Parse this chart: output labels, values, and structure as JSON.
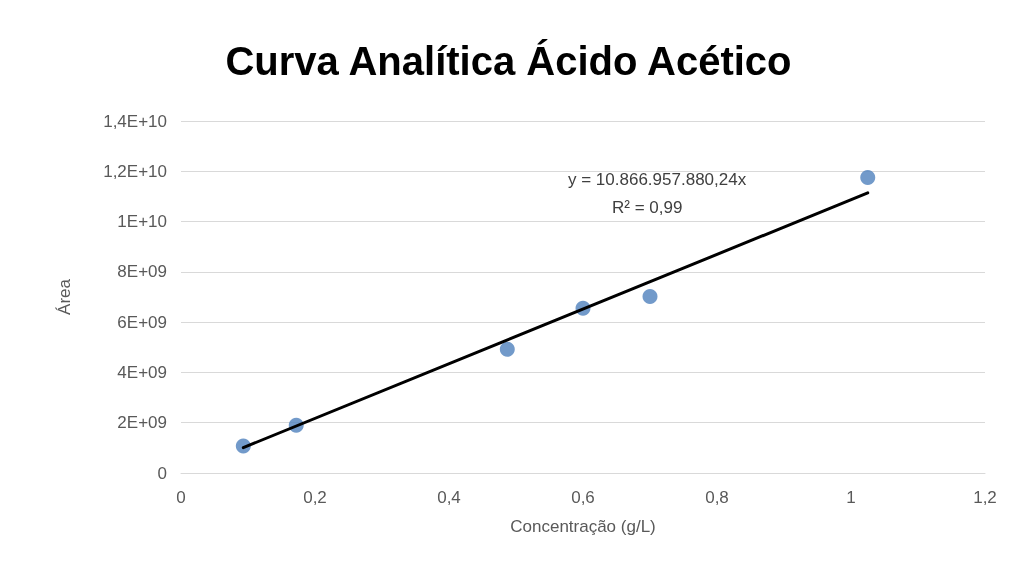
{
  "chart_data": {
    "type": "scatter",
    "title": "Curva Analítica Ácido Acético",
    "xlabel": "Concentração (g/L)",
    "ylabel": "Área",
    "series": [
      {
        "color": "#4f81bd",
        "x": [
          0.093,
          0.172,
          0.487,
          0.6,
          0.7,
          1.025
        ],
        "values": [
          1070000000.0,
          1900000000.0,
          4920000000.0,
          6550000000.0,
          7020000000.0,
          11750000000.0
        ]
      },
      {
        "type": "line",
        "marker": "none",
        "color": "#000000",
        "x": [
          0.093,
          1.025
        ],
        "values": [
          1010000000.0,
          11140000000.0
        ]
      }
    ],
    "annotations": [
      "y = 10.866.957.880,24x",
      "R² = 0,99"
    ],
    "xlim": [
      0,
      1.2
    ],
    "ylim": [
      0,
      14000000000.0
    ],
    "xticks": [
      0,
      {
        "value": 0.2,
        "label": "0,2"
      },
      {
        "value": 0.4,
        "label": "0,4"
      },
      {
        "value": 0.6,
        "label": "0,6"
      },
      {
        "value": 0.8,
        "label": "0,8"
      },
      1,
      {
        "value": 1.2,
        "label": "1,2"
      }
    ],
    "yticks": [
      0,
      {
        "value": 2000000000.0,
        "label": "2E+09"
      },
      {
        "value": 4000000000.0,
        "label": "4E+09"
      },
      {
        "value": 6000000000.0,
        "label": "6E+09"
      },
      {
        "value": 8000000000.0,
        "label": "8E+09"
      },
      {
        "value": 10000000000.0,
        "label": "1E+10"
      },
      {
        "value": 12000000000.0,
        "label": "1,2E+10"
      },
      {
        "value": 14000000000.0,
        "label": "1,4E+10"
      }
    ],
    "grid": "y",
    "marker": "circle",
    "line_style": "solid"
  }
}
